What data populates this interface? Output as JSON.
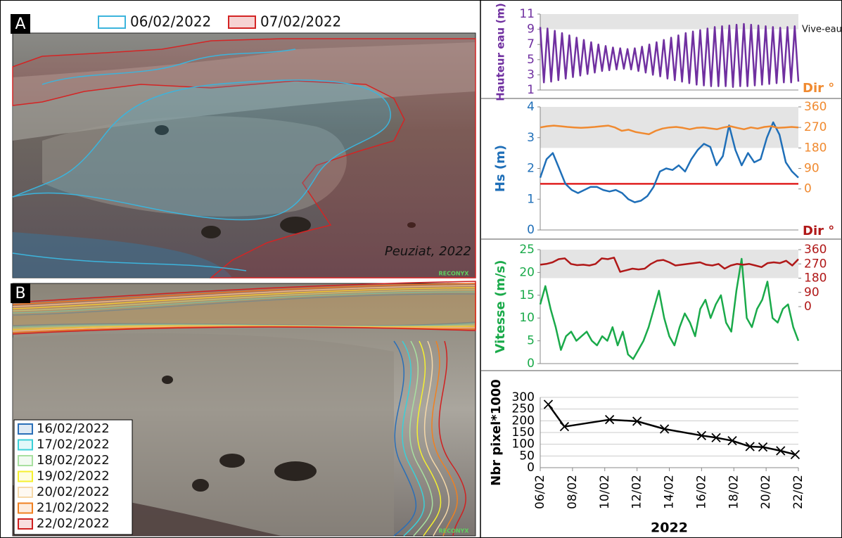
{
  "panels": {
    "A": {
      "label": "A",
      "legend": [
        {
          "name": "06/02/2022",
          "color": "#3cb4dc"
        },
        {
          "name": "07/02/2022",
          "color": "#d42424"
        }
      ],
      "caption": "Peuziat, 2022",
      "watermark": "RECONYX"
    },
    "B": {
      "label": "B",
      "legend": [
        {
          "name": "16/02/2022",
          "color": "#2a6fb8"
        },
        {
          "name": "17/02/2022",
          "color": "#3ad0d8"
        },
        {
          "name": "18/02/2022",
          "color": "#a8e0a0"
        },
        {
          "name": "19/02/2022",
          "color": "#f5f030"
        },
        {
          "name": "20/02/2022",
          "color": "#f5d8a8"
        },
        {
          "name": "21/02/2022",
          "color": "#f08020"
        },
        {
          "name": "22/02/2022",
          "color": "#d02020"
        }
      ],
      "watermark": "RECONYX"
    }
  },
  "chart_data": [
    {
      "type": "line",
      "ylabel": "Hauteur eau (m)",
      "annotation": "Vive-eau",
      "ylim": [
        1,
        11
      ],
      "yticks": [
        1,
        3,
        5,
        7,
        9,
        11
      ],
      "band": {
        "axis": "y",
        "range": [
          9,
          11
        ]
      },
      "series": [
        {
          "color": "#7030a0",
          "values": [
            9.3,
            2.0,
            9.1,
            2.1,
            8.8,
            2.3,
            8.5,
            2.5,
            8.2,
            2.7,
            7.9,
            2.9,
            7.6,
            3.1,
            7.3,
            3.3,
            7.0,
            3.5,
            6.8,
            3.6,
            6.6,
            3.7,
            6.5,
            3.8,
            6.4,
            3.7,
            6.5,
            3.5,
            6.7,
            3.3,
            7.0,
            3.0,
            7.3,
            2.8,
            7.6,
            2.5,
            7.9,
            2.3,
            8.2,
            2.1,
            8.5,
            1.9,
            8.7,
            1.7,
            8.9,
            1.6,
            9.1,
            1.5,
            9.3,
            1.5,
            9.4,
            1.5,
            9.5,
            1.4,
            9.6,
            1.5,
            9.7,
            1.5,
            9.6,
            1.6,
            9.5,
            1.7,
            9.4,
            1.8,
            9.3,
            1.9,
            9.2,
            2.0,
            9.3,
            2.0,
            9.4,
            2.1
          ]
        }
      ]
    },
    {
      "type": "line",
      "ylabel": "Hs (m)",
      "y2label": "Dir °",
      "ylim": [
        0,
        4
      ],
      "yticks": [
        0,
        1,
        2,
        3,
        4
      ],
      "y2lim": [
        -180,
        360
      ],
      "y2ticks": [
        0,
        90,
        180,
        270,
        360
      ],
      "band": {
        "axis": "y2",
        "range": [
          180,
          360
        ]
      },
      "hline": {
        "value": 1.5,
        "color": "#e02020"
      },
      "series": [
        {
          "color": "#1f6fb8",
          "values": [
            1.7,
            2.3,
            2.5,
            2.0,
            1.5,
            1.3,
            1.2,
            1.3,
            1.4,
            1.4,
            1.3,
            1.25,
            1.3,
            1.2,
            1.0,
            0.9,
            0.95,
            1.1,
            1.4,
            1.9,
            2.0,
            1.95,
            2.1,
            1.9,
            2.3,
            2.6,
            2.8,
            2.7,
            2.1,
            2.4,
            3.4,
            2.6,
            2.1,
            2.5,
            2.2,
            2.3,
            3.0,
            3.5,
            3.1,
            2.2,
            1.9,
            1.7
          ]
        },
        {
          "color": "#f08a30",
          "axis": "y2",
          "values": [
            270,
            275,
            278,
            275,
            272,
            270,
            268,
            270,
            272,
            275,
            278,
            270,
            255,
            260,
            250,
            245,
            240,
            255,
            265,
            270,
            272,
            268,
            262,
            268,
            270,
            266,
            262,
            270,
            275,
            268,
            262,
            270,
            265,
            272,
            275,
            268,
            270,
            272,
            270
          ]
        }
      ]
    },
    {
      "type": "line",
      "ylabel": "Vitesse (m/s)",
      "y2label": "Dir °",
      "ylim": [
        0,
        25
      ],
      "yticks": [
        0,
        5,
        10,
        15,
        20,
        25
      ],
      "y2lim": [
        -360,
        360
      ],
      "y2ticks": [
        0,
        90,
        180,
        270,
        360
      ],
      "band": {
        "axis": "y2",
        "range": [
          180,
          360
        ]
      },
      "series": [
        {
          "color": "#1aaa4a",
          "values": [
            13,
            17,
            12,
            8,
            3,
            6,
            7,
            5,
            6,
            7,
            5,
            4,
            6,
            5,
            8,
            4,
            7,
            2,
            1,
            3,
            5,
            8,
            12,
            16,
            10,
            6,
            4,
            8,
            11,
            9,
            6,
            12,
            14,
            10,
            13,
            15,
            9,
            7,
            16,
            23,
            10,
            8,
            12,
            14,
            18,
            10,
            9,
            12,
            13,
            8,
            5
          ]
        },
        {
          "color": "#b01818",
          "axis": "y2",
          "values": [
            265,
            270,
            280,
            300,
            305,
            270,
            262,
            265,
            260,
            270,
            305,
            300,
            310,
            220,
            230,
            240,
            235,
            240,
            270,
            290,
            295,
            280,
            260,
            265,
            270,
            275,
            280,
            265,
            260,
            270,
            240,
            260,
            270,
            265,
            270,
            260,
            250,
            275,
            280,
            275,
            290,
            260,
            300
          ]
        }
      ]
    },
    {
      "type": "line",
      "markers": "x",
      "ylabel": "Nbr pixel*1000",
      "xlabel": "2022",
      "color": "#000000",
      "grid": true,
      "x": [
        6.5,
        7.5,
        10.3,
        12,
        13.7,
        16,
        16.9,
        17.9,
        19,
        19.8,
        20.9,
        21.8
      ],
      "values": [
        270,
        175,
        205,
        198,
        165,
        137,
        128,
        115,
        90,
        88,
        72,
        56
      ],
      "xlim": [
        6,
        22
      ],
      "xticks": [
        {
          "value": 6,
          "label": "06/02"
        },
        {
          "value": 8,
          "label": "08/02"
        },
        {
          "value": 10,
          "label": "10/02"
        },
        {
          "value": 12,
          "label": "12/02"
        },
        {
          "value": 14,
          "label": "14/02"
        },
        {
          "value": 16,
          "label": "16/02"
        },
        {
          "value": 18,
          "label": "18/02"
        },
        {
          "value": 20,
          "label": "20/02"
        },
        {
          "value": 22,
          "label": "22/02"
        }
      ],
      "ylim": [
        0,
        300
      ],
      "yticks": [
        0,
        50,
        100,
        150,
        200,
        250,
        300
      ]
    }
  ]
}
